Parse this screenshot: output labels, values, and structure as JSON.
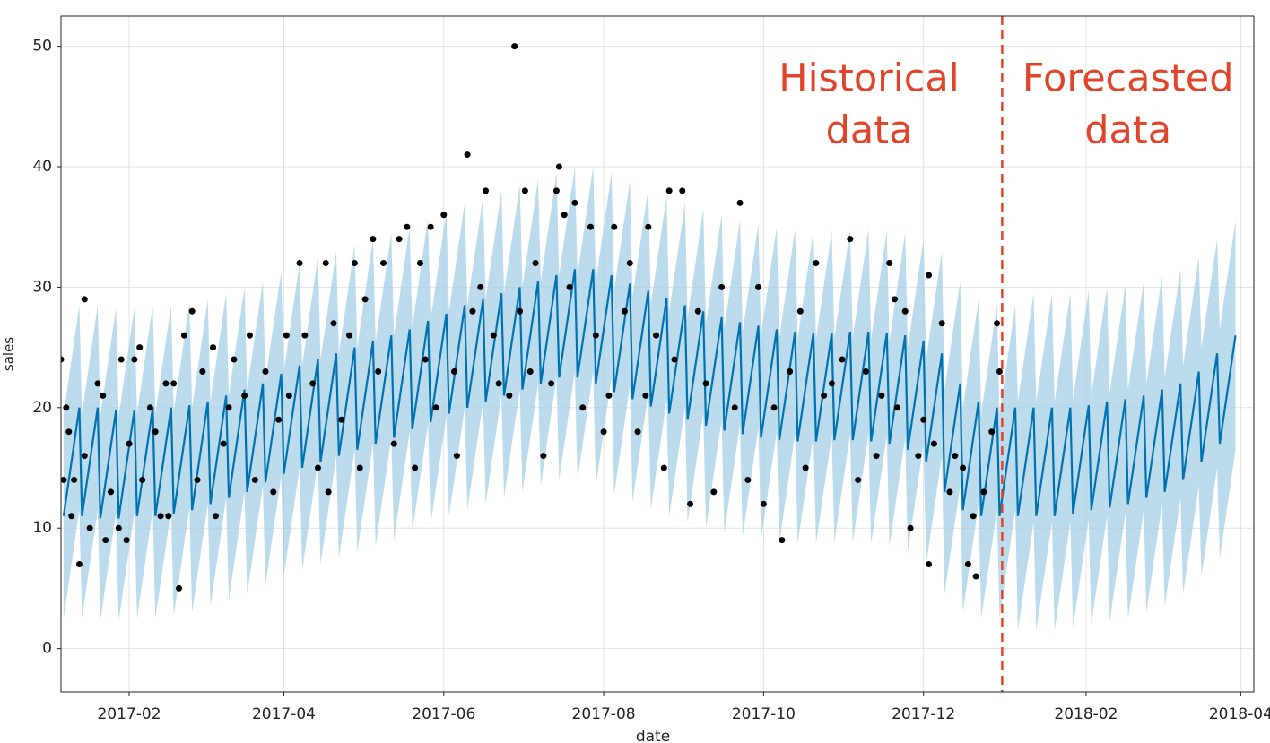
{
  "chart_data": {
    "type": "forecast",
    "x_label": "date",
    "y_label": "sales",
    "xlim": [
      5,
      460
    ],
    "ylim": [
      -3.6,
      52.5
    ],
    "yticks": [
      0,
      10,
      20,
      30,
      40,
      50
    ],
    "xticks": [
      {
        "value": 31,
        "label": "2017-02"
      },
      {
        "value": 90,
        "label": "2017-04"
      },
      {
        "value": 151,
        "label": "2017-06"
      },
      {
        "value": 212,
        "label": "2017-08"
      },
      {
        "value": 273,
        "label": "2017-10"
      },
      {
        "value": 334,
        "label": "2017-12"
      },
      {
        "value": 396,
        "label": "2018-02"
      },
      {
        "value": 455,
        "label": "2018-04"
      }
    ],
    "grid": true,
    "line_color": "#0072b2",
    "band_color": "#a6cfe6",
    "point_color": "#000000",
    "divider_color": "#e0442a",
    "forecast_start": 364,
    "annotations": [
      [
        "Historical",
        "data"
      ],
      [
        "Forecasted",
        "data"
      ]
    ],
    "x": [
      6,
      12,
      13,
      19,
      20,
      26,
      27,
      33,
      34,
      40,
      41,
      47,
      48,
      54,
      55,
      61,
      62,
      68,
      69,
      75,
      76,
      82,
      83,
      89,
      90,
      96,
      97,
      103,
      104,
      110,
      111,
      117,
      118,
      124,
      125,
      131,
      132,
      138,
      139,
      145,
      146,
      152,
      153,
      159,
      160,
      166,
      167,
      173,
      174,
      180,
      181,
      187,
      188,
      194,
      195,
      201,
      202,
      208,
      209,
      215,
      216,
      222,
      223,
      229,
      230,
      236,
      237,
      243,
      244,
      250,
      251,
      257,
      258,
      264,
      265,
      271,
      272,
      278,
      279,
      285,
      286,
      292,
      293,
      299,
      300,
      306,
      307,
      313,
      314,
      320,
      321,
      327,
      328,
      334,
      335,
      341,
      342,
      348,
      349,
      355,
      356,
      362,
      363,
      369,
      370,
      376,
      377,
      383,
      384,
      390,
      391,
      397,
      398,
      404,
      405,
      411,
      412,
      418,
      419,
      425,
      426,
      432,
      433,
      439,
      440,
      446,
      447,
      453
    ],
    "yhat": [
      11,
      20,
      11,
      20,
      10.8,
      19.8,
      10.8,
      19.8,
      11,
      20,
      11,
      20,
      11.2,
      20.2,
      11.5,
      20.5,
      12,
      21,
      12.5,
      21.5,
      13,
      22,
      13.8,
      22.8,
      14.5,
      23.5,
      15,
      24,
      15.5,
      24.5,
      16,
      25,
      16.5,
      25.5,
      17,
      26,
      17.5,
      26.5,
      18.2,
      27.2,
      18.8,
      27.8,
      19.5,
      28.5,
      20,
      29,
      20.5,
      29.5,
      21,
      30,
      21.5,
      30.5,
      22,
      31,
      22.5,
      31.5,
      22.5,
      31.5,
      22,
      31,
      21.3,
      30.3,
      20.7,
      29.7,
      20.1,
      29.1,
      19.5,
      28.5,
      19,
      28,
      18.5,
      27.5,
      18.1,
      27.1,
      17.8,
      26.8,
      17.5,
      26.5,
      17.3,
      26.3,
      17.2,
      26.2,
      17.2,
      26.2,
      17.3,
      26.3,
      17.3,
      26.3,
      17.2,
      26.2,
      17,
      26,
      16.5,
      25.5,
      15.5,
      24.5,
      13,
      22,
      11.5,
      20.5,
      11,
      20,
      11,
      20,
      11,
      20,
      11,
      20,
      11,
      20,
      11.2,
      20.2,
      11.5,
      20.5,
      11.7,
      20.7,
      12,
      21,
      12.5,
      21.5,
      13,
      22,
      14,
      23,
      15.5,
      24.5,
      17,
      26
    ],
    "yhat_lower": [
      2.5,
      11.5,
      2.5,
      11.5,
      2.3,
      11.3,
      2.3,
      11.3,
      2.5,
      11.5,
      2.5,
      11.5,
      2.7,
      11.7,
      3,
      12,
      3.5,
      12.5,
      4,
      13,
      4.5,
      13.5,
      5.3,
      14.3,
      6,
      15,
      6.5,
      15.5,
      7,
      16,
      7.5,
      16.5,
      8,
      17,
      8.5,
      17.5,
      9,
      18,
      9.7,
      18.7,
      10.3,
      19.3,
      11,
      20,
      11.5,
      20.5,
      12,
      21,
      12.5,
      21.5,
      13,
      22,
      13.5,
      22.5,
      14,
      23,
      14,
      23,
      13.5,
      22.5,
      12.8,
      21.8,
      12.2,
      21.2,
      11.6,
      20.6,
      11,
      20,
      10.5,
      19.5,
      10,
      19,
      9.6,
      18.6,
      9.3,
      18.3,
      9,
      18,
      8.8,
      17.8,
      8.7,
      17.7,
      8.7,
      17.7,
      8.8,
      17.8,
      8.8,
      17.8,
      8.7,
      17.7,
      8.5,
      17.5,
      8,
      17,
      7,
      16,
      4.5,
      13.5,
      3,
      12,
      2.5,
      11.5,
      2.5,
      11.5,
      1.5,
      10.5,
      1.5,
      10.5,
      1.5,
      10.5,
      1.7,
      10.7,
      2,
      11,
      2.2,
      11.2,
      2.5,
      11.5,
      3,
      12,
      3.5,
      12.5,
      4.5,
      13.5,
      6,
      15,
      7.5,
      16.5
    ],
    "yhat_upper": [
      19.5,
      28.5,
      19.5,
      28.5,
      19.3,
      28.3,
      19.3,
      28.3,
      19.5,
      28.5,
      19.5,
      28.5,
      19.7,
      28.7,
      20,
      29,
      20.5,
      29.5,
      21,
      30,
      21.5,
      30.5,
      22.3,
      31.3,
      23,
      32,
      23.5,
      32.5,
      24,
      33,
      24.5,
      33.5,
      25,
      34,
      25.5,
      34.5,
      26,
      35,
      26.7,
      35.7,
      27.3,
      36.3,
      28,
      37,
      28.5,
      37.5,
      29,
      38,
      29.5,
      38.5,
      30,
      39,
      30.5,
      39.5,
      31,
      40,
      31,
      40,
      30.5,
      39.5,
      29.8,
      38.8,
      29.2,
      38.2,
      28.6,
      37.6,
      28,
      37,
      27.5,
      36.5,
      27,
      36,
      26.6,
      35.6,
      26.3,
      35.3,
      26,
      35,
      25.8,
      34.8,
      25.7,
      34.7,
      25.7,
      34.7,
      25.8,
      34.8,
      25.8,
      34.8,
      25.7,
      34.7,
      25.5,
      34.5,
      25,
      34,
      24,
      33,
      21.5,
      30.5,
      20,
      29,
      19.5,
      28.5,
      19.5,
      28.5,
      20.5,
      29.5,
      20.5,
      29.5,
      20.5,
      29.5,
      20.7,
      29.7,
      21,
      30,
      21.2,
      30.2,
      21.5,
      30.5,
      22,
      31,
      22.5,
      31.5,
      23.5,
      32.5,
      25,
      34,
      26.5,
      35.5
    ],
    "points": {
      "x": [
        5,
        6,
        7,
        8,
        9,
        10,
        12,
        14,
        14,
        16,
        19,
        21,
        22,
        24,
        27,
        28,
        30,
        31,
        33,
        35,
        36,
        39,
        41,
        43,
        45,
        46,
        48,
        50,
        52,
        55,
        57,
        59,
        63,
        64,
        67,
        69,
        71,
        75,
        77,
        79,
        83,
        86,
        88,
        91,
        92,
        96,
        98,
        101,
        103,
        106,
        107,
        109,
        112,
        115,
        117,
        119,
        121,
        124,
        126,
        128,
        132,
        134,
        137,
        140,
        142,
        144,
        146,
        148,
        151,
        155,
        156,
        160,
        162,
        165,
        167,
        170,
        172,
        176,
        178,
        180,
        182,
        184,
        186,
        189,
        192,
        194,
        195,
        197,
        199,
        201,
        204,
        207,
        209,
        212,
        214,
        216,
        220,
        222,
        225,
        228,
        229,
        232,
        235,
        237,
        239,
        242,
        245,
        248,
        251,
        254,
        257,
        262,
        264,
        267,
        271,
        273,
        277,
        280,
        283,
        287,
        289,
        293,
        296,
        299,
        303,
        306,
        309,
        312,
        316,
        318,
        321,
        323,
        324,
        327,
        329,
        332,
        334,
        336,
        336,
        338,
        341,
        344,
        346,
        349,
        351,
        353,
        354,
        357,
        360,
        362,
        363
      ],
      "y": [
        24,
        14,
        20,
        18,
        11,
        14,
        7,
        29,
        16,
        10,
        22,
        21,
        9,
        13,
        10,
        24,
        9,
        17,
        24,
        25,
        14,
        20,
        18,
        11,
        22,
        11,
        22,
        5,
        26,
        28,
        14,
        23,
        25,
        11,
        17,
        20,
        24,
        21,
        26,
        14,
        23,
        13,
        19,
        26,
        21,
        32,
        26,
        22,
        15,
        32,
        13,
        27,
        19,
        26,
        32,
        15,
        29,
        34,
        23,
        32,
        17,
        34,
        35,
        15,
        32,
        24,
        35,
        20,
        36,
        23,
        16,
        41,
        28,
        30,
        38,
        26,
        22,
        21,
        50,
        28,
        38,
        23,
        32,
        16,
        22,
        38,
        40,
        36,
        30,
        37,
        20,
        35,
        26,
        18,
        21,
        35,
        28,
        32,
        18,
        21,
        35,
        26,
        15,
        38,
        24,
        38,
        12,
        28,
        22,
        13,
        30,
        20,
        37,
        14,
        30,
        12,
        20,
        9,
        23,
        28,
        15,
        32,
        21,
        22,
        24,
        34,
        14,
        23,
        16,
        21,
        32,
        29,
        20,
        28,
        10,
        16,
        19,
        31,
        7,
        17,
        27,
        13,
        16,
        15,
        7,
        11,
        6,
        13,
        18,
        27,
        23
      ]
    }
  }
}
